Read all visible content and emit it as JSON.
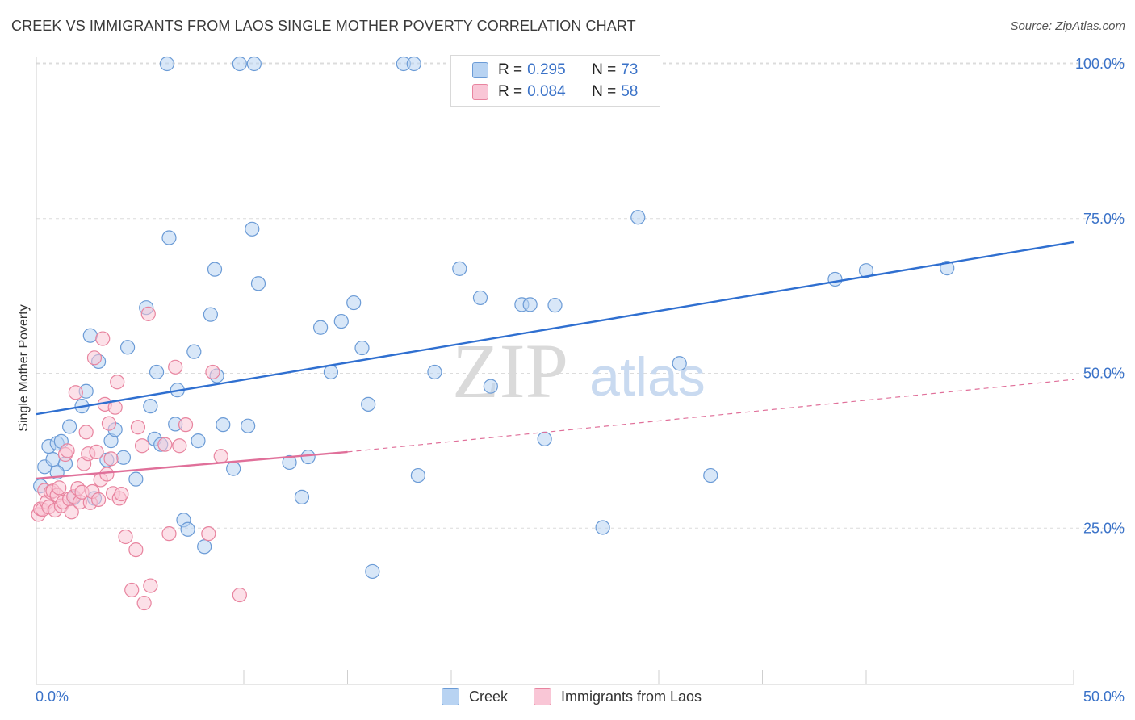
{
  "title": "CREEK VS IMMIGRANTS FROM LAOS SINGLE MOTHER POVERTY CORRELATION CHART",
  "source": "Source: ZipAtlas.com",
  "watermark": {
    "zip": "ZIP",
    "atlas": "atlas"
  },
  "legend_top": {
    "rows": [
      {
        "r_label": "R =",
        "r_value": "0.295",
        "n_label": "N =",
        "n_value": "73"
      },
      {
        "r_label": "R =",
        "r_value": "0.084",
        "n_label": "N =",
        "n_value": "58"
      }
    ]
  },
  "legend_bottom": {
    "creek": "Creek",
    "laos": "Immigrants from Laos"
  },
  "colors": {
    "creek_fill": "#b8d3f2",
    "creek_stroke": "#6b9bd6",
    "creek_line": "#2f6fd0",
    "laos_fill": "#f9c6d6",
    "laos_stroke": "#e8849f",
    "laos_line": "#e0709a",
    "tick_text": "#3a72c8",
    "grid": "#dcdcdc"
  },
  "chart_data": {
    "type": "scatter",
    "title": "CREEK VS IMMIGRANTS FROM LAOS SINGLE MOTHER POVERTY CORRELATION CHART",
    "xlabel": "",
    "ylabel": "Single Mother Poverty",
    "xlim": [
      0,
      50
    ],
    "ylim": [
      0,
      105
    ],
    "x_tick_labels": [
      "0.0%",
      "50.0%"
    ],
    "y_ticks": [
      25,
      50,
      75,
      100
    ],
    "y_tick_labels": [
      "25.0%",
      "50.0%",
      "75.0%",
      "100.0%"
    ],
    "grid": true,
    "series": [
      {
        "name": "Creek",
        "r": 0.295,
        "n": 73,
        "trend": {
          "x": [
            0,
            50
          ],
          "y": [
            43.4,
            71.2
          ],
          "style": "solid"
        },
        "points": [
          [
            0.2,
            31.8
          ],
          [
            0.4,
            34.9
          ],
          [
            0.6,
            38.2
          ],
          [
            0.8,
            36.1
          ],
          [
            1.0,
            38.7
          ],
          [
            1.2,
            39.0
          ],
          [
            1.4,
            35.4
          ],
          [
            1.6,
            41.4
          ],
          [
            1.8,
            29.9
          ],
          [
            2.2,
            44.7
          ],
          [
            2.4,
            47.1
          ],
          [
            2.6,
            56.1
          ],
          [
            2.8,
            29.8
          ],
          [
            3.0,
            51.9
          ],
          [
            3.4,
            36.0
          ],
          [
            3.6,
            39.1
          ],
          [
            3.8,
            40.9
          ],
          [
            4.2,
            36.4
          ],
          [
            4.4,
            54.2
          ],
          [
            4.8,
            32.9
          ],
          [
            5.3,
            60.6
          ],
          [
            5.5,
            44.7
          ],
          [
            5.7,
            39.4
          ],
          [
            5.8,
            50.2
          ],
          [
            6.0,
            38.5
          ],
          [
            6.3,
            100.0
          ],
          [
            6.4,
            71.9
          ],
          [
            6.7,
            41.8
          ],
          [
            6.8,
            47.3
          ],
          [
            7.1,
            26.3
          ],
          [
            7.3,
            24.8
          ],
          [
            7.6,
            53.5
          ],
          [
            7.8,
            39.1
          ],
          [
            8.1,
            22.0
          ],
          [
            8.4,
            59.5
          ],
          [
            8.6,
            66.8
          ],
          [
            8.7,
            49.6
          ],
          [
            9.0,
            41.7
          ],
          [
            9.5,
            34.6
          ],
          [
            9.8,
            100.0
          ],
          [
            10.2,
            41.5
          ],
          [
            10.4,
            73.3
          ],
          [
            10.5,
            100.0
          ],
          [
            10.7,
            64.5
          ],
          [
            12.2,
            35.6
          ],
          [
            12.8,
            30.0
          ],
          [
            13.1,
            36.5
          ],
          [
            13.7,
            57.4
          ],
          [
            14.2,
            50.2
          ],
          [
            14.7,
            58.4
          ],
          [
            15.3,
            61.4
          ],
          [
            15.7,
            54.1
          ],
          [
            16.0,
            45.0
          ],
          [
            16.2,
            18.0
          ],
          [
            17.7,
            100.0
          ],
          [
            18.2,
            100.0
          ],
          [
            18.4,
            33.5
          ],
          [
            19.2,
            50.2
          ],
          [
            20.4,
            66.9
          ],
          [
            21.4,
            62.2
          ],
          [
            21.9,
            47.9
          ],
          [
            23.4,
            61.1
          ],
          [
            23.8,
            61.1
          ],
          [
            24.5,
            39.4
          ],
          [
            25.0,
            61.0
          ],
          [
            27.3,
            25.1
          ],
          [
            29.0,
            75.2
          ],
          [
            31.0,
            51.6
          ],
          [
            32.5,
            33.5
          ],
          [
            38.5,
            65.2
          ],
          [
            40.0,
            66.6
          ],
          [
            43.9,
            67.0
          ],
          [
            1.0,
            34.0
          ]
        ]
      },
      {
        "name": "Immigrants from Laos",
        "r": 0.084,
        "n": 58,
        "trend": {
          "x": [
            0,
            15
          ],
          "y": [
            33.0,
            37.3
          ],
          "style": "solid",
          "dashed_extension": {
            "x": [
              15,
              50
            ],
            "y": [
              37.3,
              49.0
            ]
          }
        },
        "points": [
          [
            0.1,
            27.2
          ],
          [
            0.2,
            28.1
          ],
          [
            0.3,
            28.0
          ],
          [
            0.4,
            31.1
          ],
          [
            0.5,
            29.2
          ],
          [
            0.6,
            28.4
          ],
          [
            0.7,
            30.8
          ],
          [
            0.8,
            31.0
          ],
          [
            0.9,
            27.9
          ],
          [
            1.0,
            30.3
          ],
          [
            1.1,
            31.5
          ],
          [
            1.2,
            28.6
          ],
          [
            1.3,
            29.2
          ],
          [
            1.4,
            36.9
          ],
          [
            1.5,
            37.5
          ],
          [
            1.6,
            29.7
          ],
          [
            1.7,
            27.6
          ],
          [
            1.8,
            30.1
          ],
          [
            1.9,
            46.9
          ],
          [
            2.0,
            31.4
          ],
          [
            2.1,
            29.2
          ],
          [
            2.2,
            30.8
          ],
          [
            2.3,
            35.4
          ],
          [
            2.4,
            40.5
          ],
          [
            2.5,
            37.0
          ],
          [
            2.6,
            29.1
          ],
          [
            2.7,
            30.9
          ],
          [
            2.8,
            52.5
          ],
          [
            2.9,
            37.3
          ],
          [
            3.0,
            29.6
          ],
          [
            3.1,
            32.8
          ],
          [
            3.2,
            55.6
          ],
          [
            3.3,
            45.0
          ],
          [
            3.4,
            33.7
          ],
          [
            3.5,
            41.9
          ],
          [
            3.6,
            36.2
          ],
          [
            3.7,
            30.6
          ],
          [
            3.8,
            44.5
          ],
          [
            3.9,
            48.6
          ],
          [
            4.0,
            29.8
          ],
          [
            4.1,
            30.5
          ],
          [
            4.3,
            23.6
          ],
          [
            4.6,
            15.0
          ],
          [
            4.8,
            21.5
          ],
          [
            4.9,
            41.3
          ],
          [
            5.1,
            38.3
          ],
          [
            5.2,
            12.9
          ],
          [
            5.4,
            59.6
          ],
          [
            5.5,
            15.7
          ],
          [
            6.2,
            38.5
          ],
          [
            6.4,
            24.1
          ],
          [
            6.7,
            51.0
          ],
          [
            6.9,
            38.3
          ],
          [
            7.2,
            41.7
          ],
          [
            8.3,
            24.1
          ],
          [
            8.5,
            50.2
          ],
          [
            8.9,
            36.6
          ],
          [
            9.8,
            14.2
          ]
        ]
      }
    ]
  }
}
